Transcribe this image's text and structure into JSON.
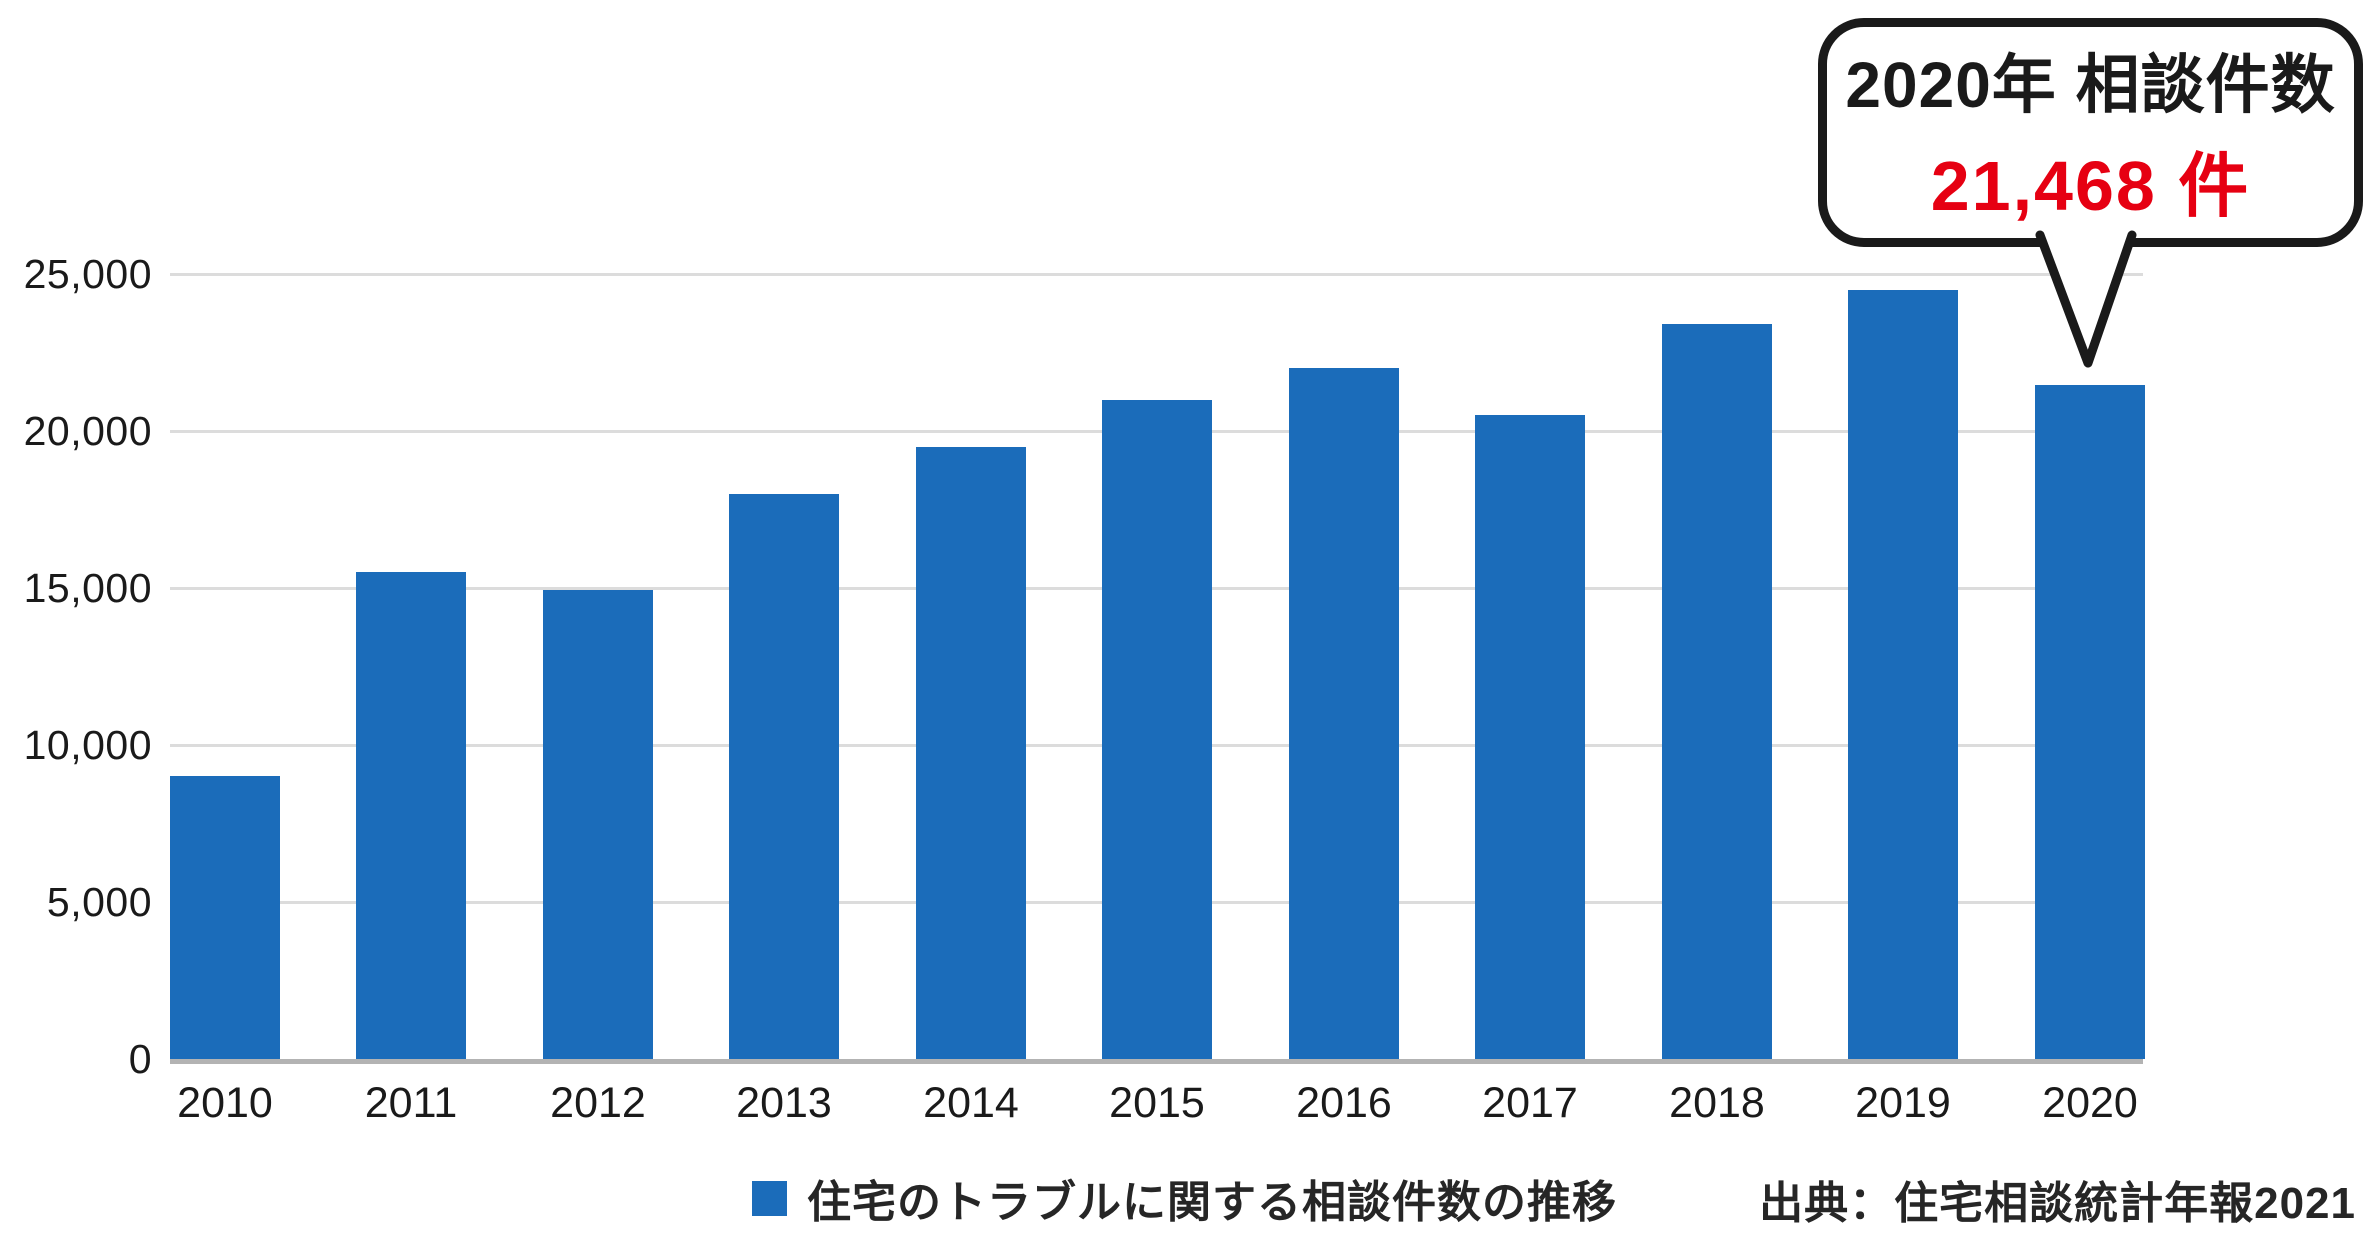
{
  "callout": {
    "line1": "2020年 相談件数",
    "line2": "21,468 件"
  },
  "legend": {
    "label": "住宅のトラブルに関する相談件数の推移"
  },
  "source": {
    "text": "出典：住宅相談統計年報2021"
  },
  "colors": {
    "bar": "#1b6cba",
    "accent_red": "#e60012",
    "text": "#1a1a1a",
    "gridline": "#dcdcdc",
    "axis_line": "#b3b3b3"
  },
  "chart_data": {
    "type": "bar",
    "title": "",
    "categories": [
      "2010",
      "2011",
      "2012",
      "2013",
      "2014",
      "2015",
      "2016",
      "2017",
      "2018",
      "2019",
      "2020"
    ],
    "values": [
      9000,
      15500,
      14950,
      18000,
      19500,
      21000,
      22000,
      20500,
      23400,
      24500,
      21468
    ],
    "series_name": "住宅のトラブルに関する相談件数の推移",
    "xlabel": "",
    "ylabel": "",
    "ylim": [
      0,
      25000
    ],
    "yticks": [
      0,
      5000,
      10000,
      15000,
      20000,
      25000
    ],
    "ytick_labels": [
      "0",
      "5,000",
      "10,000",
      "15,000",
      "20,000",
      "25,000"
    ],
    "grid": true,
    "legend_position": "bottom",
    "bar_color": "#1b6cba",
    "annotation": {
      "target_category": "2020",
      "label": "2020年 相談件数",
      "value": 21468,
      "value_label": "21,468 件",
      "value_color": "#e60012"
    }
  }
}
